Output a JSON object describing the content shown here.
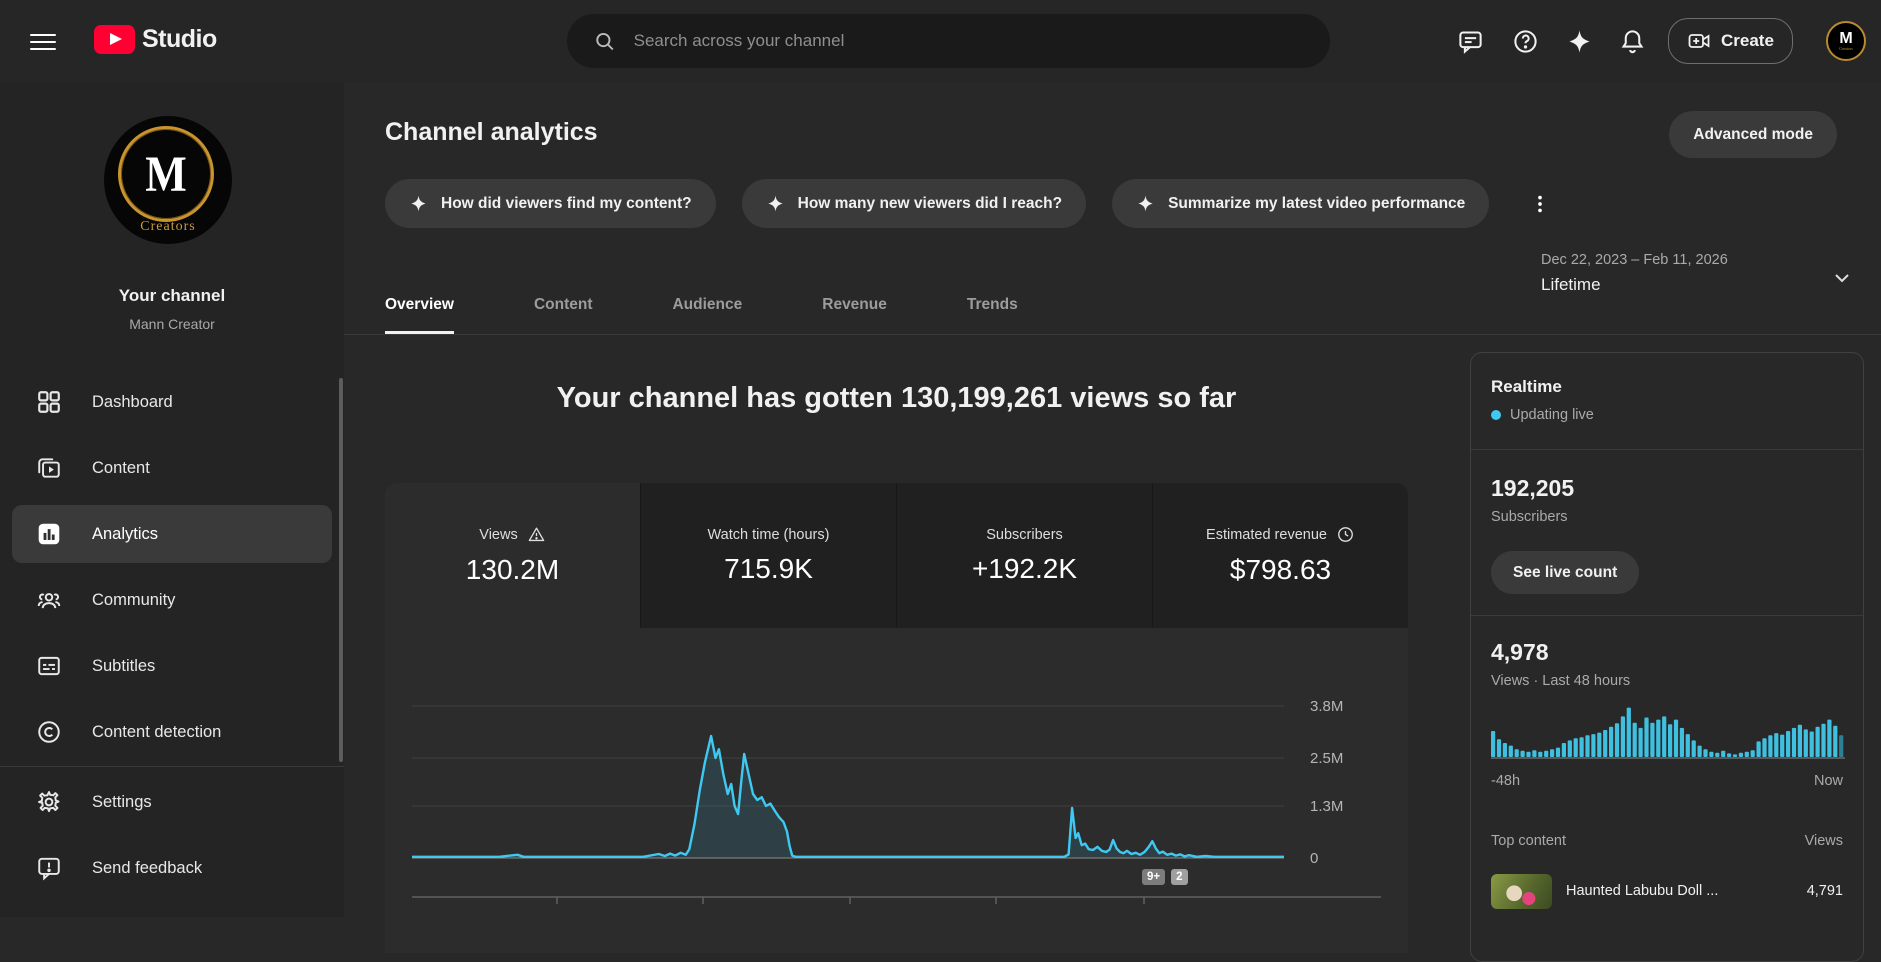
{
  "topbar": {
    "brand": "Studio",
    "search_placeholder": "Search across your channel",
    "create_label": "Create",
    "icons": [
      "comment-icon",
      "help-icon",
      "sparkle-icon",
      "bell-icon"
    ]
  },
  "sidebar": {
    "channel_title": "Your channel",
    "channel_owner": "Mann Creator",
    "avatar_monogram": "M",
    "avatar_caption": "Creators",
    "items": [
      {
        "label": "Dashboard",
        "icon": "dashboard",
        "active": false
      },
      {
        "label": "Content",
        "icon": "content",
        "active": false
      },
      {
        "label": "Analytics",
        "icon": "analytics",
        "active": true
      },
      {
        "label": "Community",
        "icon": "community",
        "active": false
      },
      {
        "label": "Subtitles",
        "icon": "subtitles",
        "active": false
      },
      {
        "label": "Content detection",
        "icon": "copyright",
        "active": false
      }
    ],
    "footer_items": [
      {
        "label": "Settings",
        "icon": "settings"
      },
      {
        "label": "Send feedback",
        "icon": "feedback"
      }
    ]
  },
  "header": {
    "title": "Channel analytics",
    "advanced_mode": "Advanced mode",
    "chips": [
      "How did viewers find my content?",
      "How many new viewers did I reach?",
      "Summarize my latest video performance"
    ]
  },
  "tabs": [
    {
      "label": "Overview",
      "active": true
    },
    {
      "label": "Content",
      "active": false
    },
    {
      "label": "Audience",
      "active": false
    },
    {
      "label": "Revenue",
      "active": false
    },
    {
      "label": "Trends",
      "active": false
    }
  ],
  "daterange": {
    "range": "Dec 22, 2023 – Feb 11, 2026",
    "preset": "Lifetime"
  },
  "overview": {
    "headline": "Your channel has gotten 130,199,261 views so far",
    "metrics": [
      {
        "label": "Views",
        "value": "130.2M",
        "icon": "warning",
        "selected": true
      },
      {
        "label": "Watch time (hours)",
        "value": "715.9K",
        "icon": null,
        "selected": false
      },
      {
        "label": "Subscribers",
        "value": "+192.2K",
        "icon": null,
        "selected": false
      },
      {
        "label": "Estimated revenue",
        "value": "$798.63",
        "icon": "clock",
        "selected": false
      }
    ],
    "marker_badges": [
      "9+",
      "2"
    ]
  },
  "realtime": {
    "title": "Realtime",
    "status": "Updating live",
    "subscribers": "192,205",
    "subscribers_label": "Subscribers",
    "live_button": "See live count",
    "views": "4,978",
    "views_label": "Views · Last 48 hours",
    "axis_left": "-48h",
    "axis_right": "Now",
    "top_content_header": "Top content",
    "views_header": "Views",
    "rows": [
      {
        "title": "Haunted Labubu Doll ...",
        "views": "4,791"
      }
    ]
  },
  "colors": {
    "accent_cyan": "#3fc9f2",
    "bar_cyan": "#3fc0e0",
    "brand_red": "#ff0033"
  },
  "chart_data": [
    {
      "type": "line",
      "name": "lifetime-views-timeline",
      "ylabels": [
        "3.8M",
        "2.5M",
        "1.3M",
        "0"
      ],
      "ylim_millions": [
        0,
        4.2
      ],
      "x_range": [
        "Dec 22, 2023",
        "Feb 11, 2026"
      ],
      "points_frac_millions": [
        [
          0,
          0.03
        ],
        [
          0.1,
          0.03
        ],
        [
          0.121,
          0.08
        ],
        [
          0.128,
          0.03
        ],
        [
          0.265,
          0.03
        ],
        [
          0.283,
          0.1
        ],
        [
          0.29,
          0.05
        ],
        [
          0.296,
          0.11
        ],
        [
          0.302,
          0.06
        ],
        [
          0.308,
          0.13
        ],
        [
          0.314,
          0.08
        ],
        [
          0.318,
          0.22
        ],
        [
          0.324,
          0.85
        ],
        [
          0.33,
          1.7
        ],
        [
          0.336,
          2.4
        ],
        [
          0.343,
          3.05
        ],
        [
          0.348,
          2.5
        ],
        [
          0.352,
          2.72
        ],
        [
          0.357,
          2.1
        ],
        [
          0.362,
          1.6
        ],
        [
          0.366,
          1.85
        ],
        [
          0.37,
          1.3
        ],
        [
          0.374,
          1.1
        ],
        [
          0.378,
          2.0
        ],
        [
          0.381,
          2.6
        ],
        [
          0.386,
          2.1
        ],
        [
          0.391,
          1.6
        ],
        [
          0.396,
          1.45
        ],
        [
          0.401,
          1.52
        ],
        [
          0.406,
          1.3
        ],
        [
          0.411,
          1.36
        ],
        [
          0.416,
          1.18
        ],
        [
          0.421,
          1.02
        ],
        [
          0.426,
          0.9
        ],
        [
          0.43,
          0.66
        ],
        [
          0.433,
          0.3
        ],
        [
          0.436,
          0.06
        ],
        [
          0.44,
          0.03
        ],
        [
          0.6,
          0.03
        ],
        [
          0.748,
          0.03
        ],
        [
          0.753,
          0.09
        ],
        [
          0.757,
          1.25
        ],
        [
          0.761,
          0.5
        ],
        [
          0.764,
          0.62
        ],
        [
          0.768,
          0.32
        ],
        [
          0.772,
          0.36
        ],
        [
          0.776,
          0.22
        ],
        [
          0.781,
          0.2
        ],
        [
          0.786,
          0.28
        ],
        [
          0.791,
          0.18
        ],
        [
          0.796,
          0.15
        ],
        [
          0.8,
          0.21
        ],
        [
          0.804,
          0.45
        ],
        [
          0.808,
          0.24
        ],
        [
          0.812,
          0.15
        ],
        [
          0.816,
          0.12
        ],
        [
          0.82,
          0.18
        ],
        [
          0.825,
          0.1
        ],
        [
          0.83,
          0.13
        ],
        [
          0.835,
          0.08
        ],
        [
          0.84,
          0.15
        ],
        [
          0.845,
          0.28
        ],
        [
          0.849,
          0.42
        ],
        [
          0.853,
          0.24
        ],
        [
          0.857,
          0.12
        ],
        [
          0.861,
          0.16
        ],
        [
          0.866,
          0.08
        ],
        [
          0.871,
          0.11
        ],
        [
          0.876,
          0.06
        ],
        [
          0.881,
          0.09
        ],
        [
          0.886,
          0.04
        ],
        [
          0.891,
          0.07
        ],
        [
          0.9,
          0.03
        ],
        [
          0.91,
          0.05
        ],
        [
          0.92,
          0.03
        ],
        [
          1.0,
          0.03
        ]
      ]
    },
    {
      "type": "bar",
      "name": "realtime-views-48h",
      "xlabels": [
        "-48h",
        "Now"
      ],
      "values_relative": [
        0.5,
        0.34,
        0.27,
        0.22,
        0.15,
        0.12,
        0.1,
        0.13,
        0.1,
        0.12,
        0.15,
        0.18,
        0.27,
        0.32,
        0.36,
        0.38,
        0.42,
        0.44,
        0.47,
        0.52,
        0.58,
        0.65,
        0.78,
        0.95,
        0.66,
        0.56,
        0.76,
        0.66,
        0.72,
        0.78,
        0.63,
        0.72,
        0.56,
        0.44,
        0.32,
        0.22,
        0.15,
        0.1,
        0.08,
        0.12,
        0.07,
        0.05,
        0.08,
        0.1,
        0.13,
        0.3,
        0.36,
        0.42,
        0.46,
        0.43,
        0.5,
        0.56,
        0.62,
        0.53,
        0.49,
        0.58,
        0.64,
        0.72,
        0.6,
        0.42
      ]
    }
  ]
}
